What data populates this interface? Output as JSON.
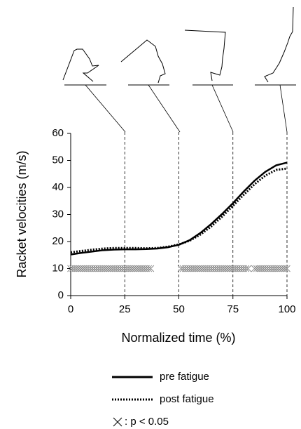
{
  "chart_data": {
    "type": "line",
    "xlabel": "Normalized time (%)",
    "ylabel": "Racket velocities (m/s)",
    "xlim": [
      0,
      100
    ],
    "ylim": [
      0,
      60
    ],
    "xticks": [
      0,
      25,
      50,
      75,
      100
    ],
    "yticks": [
      0,
      10,
      20,
      30,
      40,
      50,
      60
    ],
    "x": [
      0,
      5,
      10,
      15,
      20,
      25,
      30,
      35,
      40,
      45,
      50,
      55,
      60,
      65,
      70,
      75,
      80,
      85,
      90,
      95,
      100
    ],
    "series": [
      {
        "name": "pre fatigue",
        "color": "#000000",
        "style": "solid",
        "values": [
          15.2,
          15.8,
          16.3,
          16.8,
          17.0,
          17.1,
          17.1,
          17.2,
          17.4,
          17.9,
          18.8,
          20.5,
          23.2,
          26.5,
          30.2,
          34.2,
          38.5,
          42.5,
          45.8,
          48.2,
          49.2
        ]
      },
      {
        "name": "post fatigue",
        "color": "#000000",
        "style": "dotted",
        "values": [
          16.0,
          16.5,
          17.0,
          17.4,
          17.6,
          17.6,
          17.6,
          17.5,
          17.6,
          18.1,
          18.9,
          20.3,
          22.6,
          25.6,
          29.2,
          33.2,
          37.3,
          41.2,
          44.4,
          46.5,
          47.0
        ]
      },
      {
        "name": ": p < 0.05",
        "color": "#888888",
        "style": "cross",
        "x": [
          0,
          1,
          2,
          3,
          4,
          5,
          6,
          7,
          8,
          9,
          10,
          11,
          12,
          13,
          14,
          15,
          16,
          17,
          18,
          19,
          20,
          21,
          22,
          23,
          24,
          25,
          26,
          27,
          28,
          29,
          30,
          31,
          32,
          33,
          34,
          35,
          36,
          37,
          51,
          52,
          53,
          54,
          55,
          56,
          57,
          58,
          59,
          60,
          61,
          62,
          63,
          64,
          65,
          66,
          67,
          68,
          69,
          70,
          71,
          72,
          73,
          74,
          75,
          76,
          77,
          78,
          79,
          80,
          81,
          82,
          85,
          86,
          87,
          88,
          89,
          90,
          91,
          92,
          93,
          94,
          95,
          96,
          97,
          98,
          99,
          100
        ],
        "values": [
          10,
          10,
          10,
          10,
          10,
          10,
          10,
          10,
          10,
          10,
          10,
          10,
          10,
          10,
          10,
          10,
          10,
          10,
          10,
          10,
          10,
          10,
          10,
          10,
          10,
          10,
          10,
          10,
          10,
          10,
          10,
          10,
          10,
          10,
          10,
          10,
          10,
          10,
          10,
          10,
          10,
          10,
          10,
          10,
          10,
          10,
          10,
          10,
          10,
          10,
          10,
          10,
          10,
          10,
          10,
          10,
          10,
          10,
          10,
          10,
          10,
          10,
          10,
          10,
          10,
          10,
          10,
          10,
          10,
          10,
          10,
          10,
          10,
          10,
          10,
          10,
          10,
          10,
          10,
          10,
          10,
          10,
          10,
          10,
          10,
          10
        ]
      }
    ]
  }
}
